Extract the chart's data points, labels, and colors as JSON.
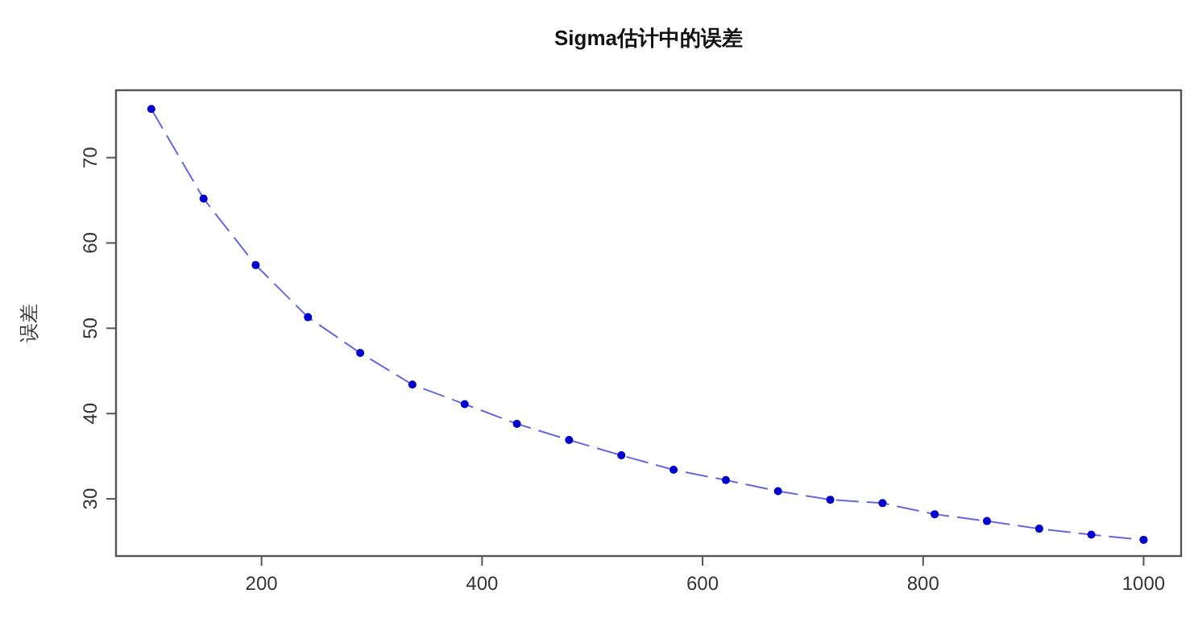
{
  "chart_data": {
    "type": "line",
    "title": "Sigma估计中的误差",
    "ylabel": "误差",
    "x": [
      100,
      147.4,
      194.7,
      242.1,
      289.5,
      336.8,
      384.2,
      431.6,
      478.9,
      526.3,
      573.7,
      621.1,
      668.4,
      715.8,
      763.2,
      810.5,
      857.9,
      905.3,
      952.6,
      1000
    ],
    "series": [
      {
        "color": "#0000cc",
        "values": [
          75.7,
          65.2,
          57.4,
          51.3,
          47.1,
          43.4,
          41.1,
          38.8,
          36.9,
          35.1,
          33.4,
          32.2,
          30.9,
          29.9,
          29.5,
          28.2,
          27.4,
          26.5,
          25.8,
          25.2
        ]
      }
    ],
    "xlim": [
      68,
      1034
    ],
    "ylim": [
      23.3,
      77.9
    ],
    "xticks": [
      200,
      400,
      600,
      800,
      1000
    ],
    "yticks": [
      30,
      40,
      50,
      60,
      70
    ],
    "marker": "circle",
    "line_style": "dashed"
  }
}
